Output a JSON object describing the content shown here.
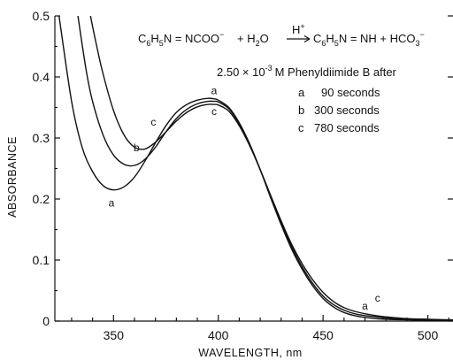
{
  "chart_data": {
    "type": "line",
    "title": "",
    "xlabel": "WAVELENGTH, nm",
    "ylabel": "ABSORBANCE",
    "xlim": [
      322,
      512
    ],
    "ylim": [
      0,
      0.5
    ],
    "x_ticks": [
      350,
      400,
      450,
      500
    ],
    "x_tick_labels": [
      "350",
      "400",
      "450",
      "500"
    ],
    "y_ticks": [
      0,
      0.1,
      0.2,
      0.3,
      0.4,
      0.5
    ],
    "y_tick_labels": [
      "0",
      "0.1",
      "0.2",
      "0.3",
      "0.4",
      "0.5"
    ],
    "grid": false,
    "series": [
      {
        "name": "a",
        "x": [
          324,
          330,
          335,
          340,
          345,
          350,
          355,
          360,
          365,
          370,
          375,
          380,
          385,
          390,
          395,
          398,
          400,
          405,
          410,
          415,
          420,
          425,
          430,
          435,
          440,
          445,
          450,
          455,
          460,
          465,
          470,
          475,
          480,
          490,
          500,
          510,
          512
        ],
        "y": [
          0.5,
          0.36,
          0.285,
          0.245,
          0.222,
          0.215,
          0.22,
          0.236,
          0.262,
          0.292,
          0.32,
          0.342,
          0.355,
          0.362,
          0.365,
          0.364,
          0.362,
          0.35,
          0.325,
          0.29,
          0.248,
          0.202,
          0.158,
          0.118,
          0.085,
          0.058,
          0.037,
          0.023,
          0.014,
          0.009,
          0.006,
          0.004,
          0.003,
          0.002,
          0.001,
          0.001,
          0.001
        ]
      },
      {
        "name": "b",
        "x": [
          333,
          337,
          340,
          345,
          350,
          355,
          360,
          365,
          370,
          375,
          380,
          385,
          390,
          395,
          398,
          400,
          405,
          410,
          415,
          420,
          425,
          430,
          435,
          440,
          445,
          450,
          455,
          460,
          465,
          470,
          475,
          480,
          490,
          500,
          510,
          512
        ],
        "y": [
          0.5,
          0.41,
          0.36,
          0.305,
          0.272,
          0.257,
          0.255,
          0.265,
          0.285,
          0.31,
          0.332,
          0.347,
          0.356,
          0.36,
          0.36,
          0.359,
          0.348,
          0.323,
          0.289,
          0.248,
          0.204,
          0.161,
          0.122,
          0.089,
          0.062,
          0.041,
          0.027,
          0.018,
          0.012,
          0.009,
          0.007,
          0.005,
          0.003,
          0.002,
          0.001,
          0.001
        ]
      },
      {
        "name": "c",
        "x": [
          339,
          342,
          345,
          350,
          355,
          360,
          365,
          370,
          375,
          380,
          385,
          390,
          395,
          398,
          400,
          405,
          410,
          415,
          420,
          425,
          430,
          435,
          440,
          445,
          450,
          455,
          460,
          465,
          470,
          475,
          480,
          490,
          500,
          510,
          512
        ],
        "y": [
          0.5,
          0.45,
          0.405,
          0.345,
          0.305,
          0.285,
          0.282,
          0.293,
          0.31,
          0.328,
          0.342,
          0.351,
          0.355,
          0.355,
          0.354,
          0.344,
          0.32,
          0.287,
          0.248,
          0.206,
          0.164,
          0.126,
          0.094,
          0.068,
          0.047,
          0.032,
          0.022,
          0.016,
          0.012,
          0.009,
          0.007,
          0.004,
          0.003,
          0.002,
          0.002
        ]
      }
    ],
    "curve_labels": [
      {
        "text": "a",
        "x": 349,
        "y": 0.188
      },
      {
        "text": "b",
        "x": 361,
        "y": 0.278
      },
      {
        "text": "c",
        "x": 369,
        "y": 0.32
      },
      {
        "text": "a",
        "x": 398,
        "y": 0.372
      },
      {
        "text": "c",
        "x": 398,
        "y": 0.338
      },
      {
        "text": "a",
        "x": 470,
        "y": 0.019
      },
      {
        "text": "c",
        "x": 476,
        "y": 0.032
      }
    ],
    "annotations": {
      "equation": {
        "reactant_formula": "C",
        "reactant_sub": "6",
        "reactant_mid": "H",
        "reactant_sub2": "5",
        "reactant_rest": "N = NCOO",
        "reactant_charge": "−",
        "plus_water": "+ H",
        "water_sub": "2",
        "water_rest": "O",
        "catalyst": "H",
        "catalyst_charge": "+",
        "product_formula": "C",
        "product_sub": "6",
        "product_mid": "H",
        "product_sub2": "5",
        "product_rest": "N = NH + HCO",
        "product_sub3": "3",
        "product_charge": "−"
      },
      "condition_prefix": "2.50 × 10",
      "condition_exp": "-3",
      "condition_suffix": "M Phenyldiimide B after",
      "legend": [
        {
          "key": "a",
          "label": "90 seconds"
        },
        {
          "key": "b",
          "label": "300 seconds"
        },
        {
          "key": "c",
          "label": "780 seconds"
        }
      ]
    }
  }
}
